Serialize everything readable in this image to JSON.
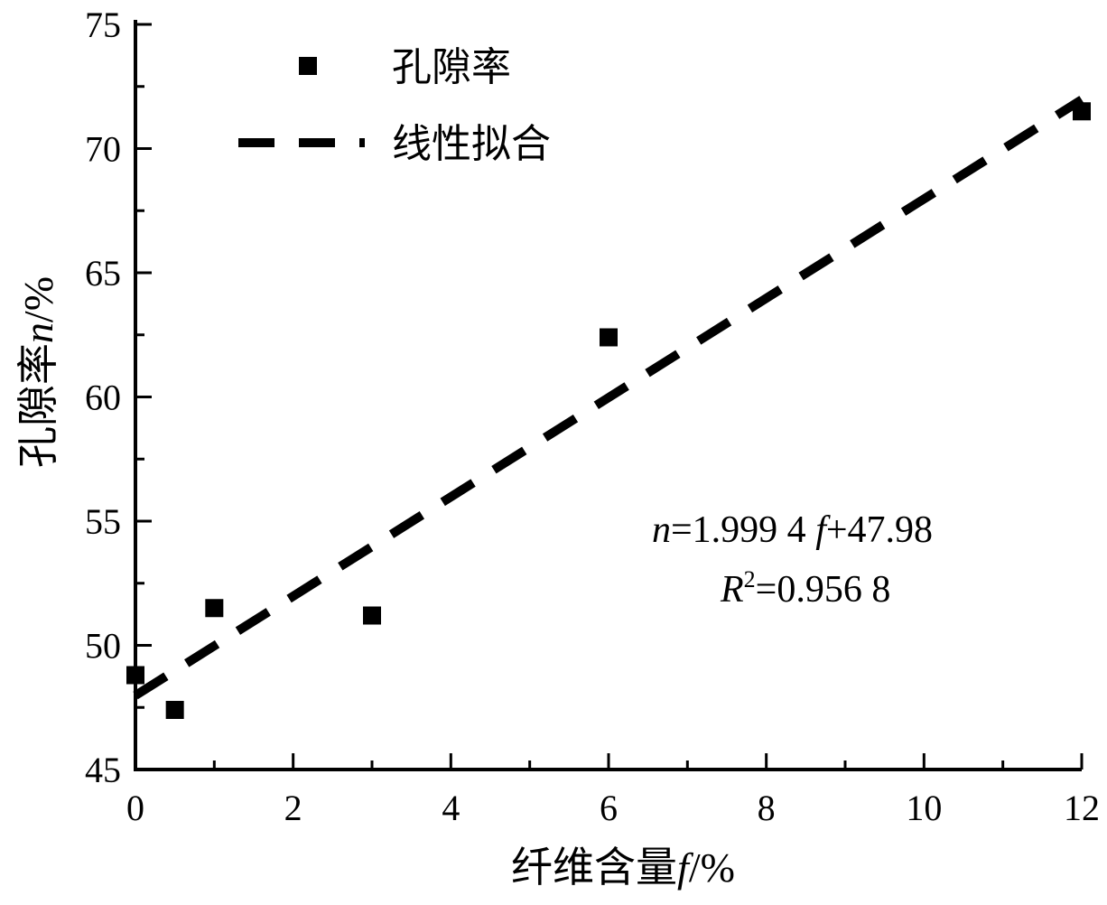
{
  "chart_data": {
    "type": "scatter",
    "xlabel_text": "纤维含量",
    "xlabel_var": "f",
    "xlabel_unit": "/%",
    "ylabel_text": "孔隙率",
    "ylabel_var": "n",
    "ylabel_unit": "/%",
    "xlim": [
      0,
      12
    ],
    "ylim": [
      45,
      75
    ],
    "x_ticks": [
      0,
      2,
      4,
      6,
      8,
      10,
      12
    ],
    "y_ticks": [
      45,
      50,
      55,
      60,
      65,
      70,
      75
    ],
    "legend_position": "top-left",
    "series": [
      {
        "name": "孔隙率",
        "marker": "square",
        "color": "#000000",
        "x": [
          0,
          0.5,
          1,
          3,
          6,
          12
        ],
        "y": [
          48.8,
          47.4,
          51.5,
          51.2,
          62.4,
          71.5
        ]
      },
      {
        "name": "线性拟合",
        "style": "dashed",
        "color": "#000000",
        "slope": 1.9994,
        "intercept": 47.98,
        "x": [
          0,
          12
        ],
        "y": [
          47.98,
          71.97
        ]
      }
    ],
    "annotations": {
      "equation": {
        "var": "n",
        "eq1": "=1.999 4 ",
        "var2": "f",
        "eq2": "+47.98"
      },
      "r2": {
        "var": "R",
        "sup": "2",
        "eq": "=0.956 8"
      }
    }
  }
}
